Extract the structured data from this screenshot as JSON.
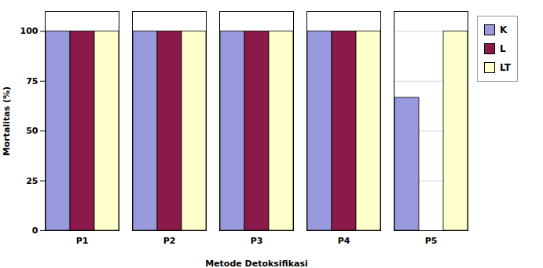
{
  "chart_data": {
    "type": "bar",
    "categories": [
      "P1",
      "P2",
      "P3",
      "P4",
      "P5"
    ],
    "series": [
      {
        "name": "K",
        "color": "#9999DD",
        "values": [
          100,
          100,
          100,
          100,
          66.67
        ]
      },
      {
        "name": "L",
        "color": "#8B1A4A",
        "values": [
          100,
          100,
          100,
          100,
          0
        ]
      },
      {
        "name": "LT",
        "color": "#FFFFCC",
        "values": [
          100,
          100,
          100,
          100,
          100
        ]
      }
    ],
    "xlabel": "Metode Detoksifikasi",
    "ylabel": "Mortalitas (%)",
    "ylim": [
      0,
      110
    ],
    "yticks": [
      0,
      25,
      50,
      75,
      100
    ],
    "grid": true,
    "legend": "right"
  }
}
